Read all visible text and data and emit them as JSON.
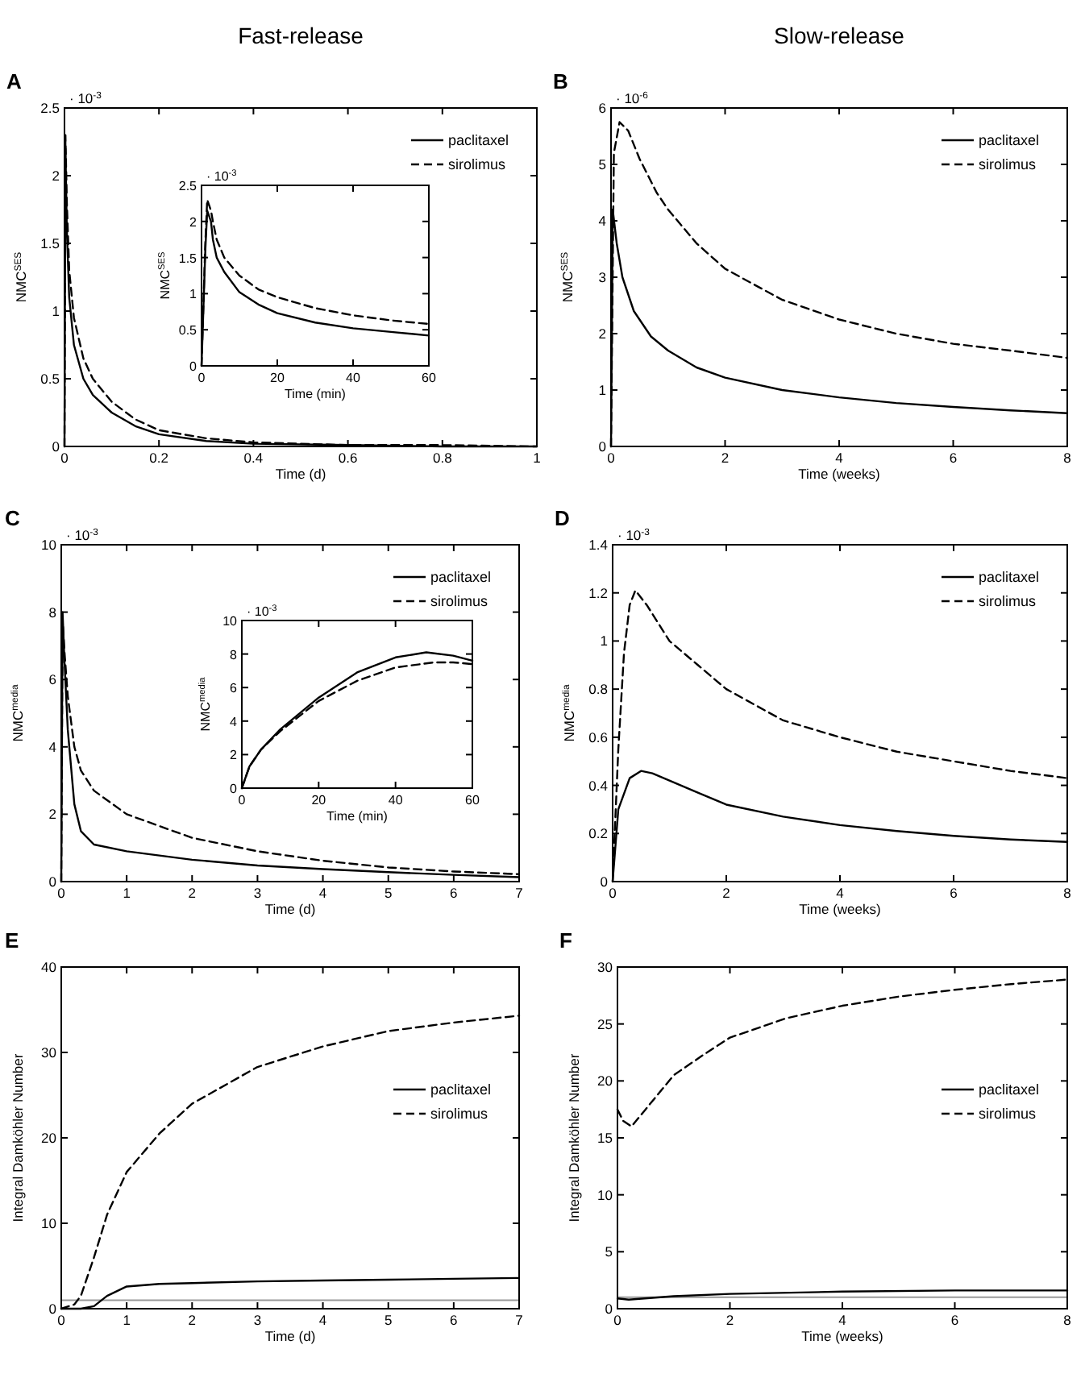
{
  "chart_data": [
    {
      "type": "line",
      "title": "Fast-release",
      "xlabel": "Time (d)",
      "ylabel": "NMC$^{SES}$",
      "annotations": [
        "A",
        "· 10$^{-3}$"
      ],
      "xlim": [
        0,
        1
      ],
      "xticks": [
        0,
        0.2,
        0.4,
        0.6,
        0.8,
        1
      ],
      "ylim": [
        0,
        2.5
      ],
      "yticks": [
        0,
        0.5,
        1,
        1.5,
        2,
        2.5
      ],
      "legend": "top right",
      "grid": false,
      "series": [
        {
          "name": "paclitaxel",
          "color": "#000000",
          "line_style": "solid",
          "x": [
            0,
            0.002,
            0.005,
            0.01,
            0.02,
            0.04,
            0.06,
            0.1,
            0.15,
            0.2,
            0.3,
            0.4,
            0.6,
            0.8,
            1
          ],
          "values": [
            0,
            2.2,
            1.6,
            1.1,
            0.75,
            0.5,
            0.38,
            0.25,
            0.15,
            0.09,
            0.04,
            0.02,
            0.01,
            0,
            0
          ]
        },
        {
          "name": "sirolimus",
          "color": "#000000",
          "line_style": "dashed",
          "x": [
            0,
            0.002,
            0.005,
            0.01,
            0.02,
            0.04,
            0.06,
            0.1,
            0.15,
            0.2,
            0.3,
            0.4,
            0.6,
            0.8,
            1
          ],
          "values": [
            0,
            2.3,
            1.8,
            1.3,
            0.95,
            0.65,
            0.5,
            0.33,
            0.2,
            0.12,
            0.06,
            0.03,
            0.01,
            0.01,
            0
          ]
        }
      ]
    },
    {
      "type": "line",
      "xlabel": "Time (min)",
      "ylabel": "NMC$^{SES}$",
      "annotations": [
        "· 10$^{-3}$"
      ],
      "xlim": [
        0,
        60
      ],
      "xticks": [
        0,
        20,
        40,
        60
      ],
      "ylim": [
        0,
        2.5
      ],
      "yticks": [
        0,
        0.5,
        1,
        1.5,
        2,
        2.5
      ],
      "legend": false,
      "grid": false,
      "series": [
        {
          "color": "#000000",
          "line_style": "solid",
          "x": [
            0,
            1,
            1.5,
            2.5,
            3,
            4,
            6,
            10,
            15,
            20,
            30,
            40,
            50,
            60
          ],
          "values": [
            0,
            1.6,
            2.15,
            2.0,
            1.75,
            1.5,
            1.3,
            1.02,
            0.85,
            0.73,
            0.6,
            0.52,
            0.47,
            0.42
          ]
        },
        {
          "color": "#000000",
          "line_style": "dashed",
          "x": [
            0,
            1,
            1.5,
            2.5,
            3,
            4,
            6,
            10,
            15,
            20,
            30,
            40,
            50,
            60
          ],
          "values": [
            0,
            1.7,
            2.3,
            2.15,
            2.0,
            1.75,
            1.5,
            1.25,
            1.06,
            0.95,
            0.8,
            0.7,
            0.63,
            0.58
          ]
        }
      ]
    },
    {
      "type": "line",
      "title": "Slow-release",
      "xlabel": "Time (weeks)",
      "ylabel": "NMC$^{SES}$",
      "annotations": [
        "B",
        "· 10$^{-6}$"
      ],
      "xlim": [
        0,
        8
      ],
      "xticks": [
        0,
        2,
        4,
        6,
        8
      ],
      "ylim": [
        0,
        6
      ],
      "yticks": [
        0,
        1,
        2,
        3,
        4,
        5,
        6
      ],
      "legend": "top right",
      "grid": false,
      "series": [
        {
          "name": "paclitaxel",
          "color": "#000000",
          "line_style": "solid",
          "x": [
            0,
            0.03,
            0.1,
            0.2,
            0.4,
            0.7,
            1,
            1.5,
            2,
            3,
            4,
            5,
            6,
            7,
            8
          ],
          "values": [
            0,
            4.2,
            3.6,
            3.0,
            2.4,
            1.95,
            1.7,
            1.4,
            1.22,
            1.0,
            0.87,
            0.77,
            0.7,
            0.64,
            0.59
          ]
        },
        {
          "name": "sirolimus",
          "color": "#000000",
          "line_style": "dashed",
          "x": [
            0,
            0.05,
            0.15,
            0.3,
            0.5,
            0.8,
            1,
            1.5,
            2,
            3,
            4,
            5,
            6,
            7,
            8
          ],
          "values": [
            0,
            5.2,
            5.75,
            5.6,
            5.1,
            4.5,
            4.2,
            3.6,
            3.15,
            2.6,
            2.25,
            2.0,
            1.82,
            1.7,
            1.57
          ]
        }
      ]
    },
    {
      "type": "line",
      "xlabel": "Time (d)",
      "ylabel": "NMC$^{media}$",
      "annotations": [
        "C",
        "· 10$^{-3}$"
      ],
      "xlim": [
        0,
        7
      ],
      "xticks": [
        0,
        1,
        2,
        3,
        4,
        5,
        6,
        7
      ],
      "ylim": [
        0,
        10
      ],
      "yticks": [
        0,
        2,
        4,
        6,
        8,
        10
      ],
      "legend": "top right",
      "grid": false,
      "series": [
        {
          "name": "paclitaxel",
          "color": "#000000",
          "line_style": "solid",
          "x": [
            0,
            0.02,
            0.05,
            0.1,
            0.2,
            0.3,
            0.5,
            1,
            2,
            3,
            4,
            5,
            6,
            7
          ],
          "values": [
            0,
            8,
            6.5,
            4.5,
            2.3,
            1.5,
            1.1,
            0.9,
            0.65,
            0.48,
            0.37,
            0.28,
            0.2,
            0.13
          ]
        },
        {
          "name": "sirolimus",
          "color": "#000000",
          "line_style": "dashed",
          "x": [
            0,
            0.02,
            0.05,
            0.1,
            0.2,
            0.3,
            0.5,
            1,
            2,
            3,
            4,
            5,
            6,
            7
          ],
          "values": [
            0,
            7.8,
            6.8,
            5.5,
            4.0,
            3.3,
            2.7,
            2.0,
            1.3,
            0.9,
            0.62,
            0.42,
            0.3,
            0.22
          ]
        }
      ]
    },
    {
      "type": "line",
      "xlabel": "Time (min)",
      "ylabel": "NMC$^{media}$",
      "annotations": [
        "· 10$^{-3}$"
      ],
      "xlim": [
        0,
        60
      ],
      "xticks": [
        0,
        20,
        40,
        60
      ],
      "ylim": [
        0,
        10
      ],
      "yticks": [
        0,
        2,
        4,
        6,
        8,
        10
      ],
      "legend": false,
      "grid": false,
      "series": [
        {
          "color": "#000000",
          "line_style": "solid",
          "x": [
            0,
            2,
            5,
            10,
            20,
            30,
            40,
            48,
            55,
            60
          ],
          "values": [
            0,
            1.3,
            2.3,
            3.5,
            5.4,
            6.9,
            7.8,
            8.1,
            7.9,
            7.6
          ]
        },
        {
          "color": "#000000",
          "line_style": "dashed",
          "x": [
            0,
            2,
            5,
            10,
            20,
            30,
            40,
            50,
            55,
            60
          ],
          "values": [
            0,
            1.3,
            2.3,
            3.4,
            5.2,
            6.4,
            7.2,
            7.5,
            7.5,
            7.4
          ]
        }
      ]
    },
    {
      "type": "line",
      "xlabel": "Time (weeks)",
      "ylabel": "NMC$^{media}$",
      "annotations": [
        "D",
        "· 10$^{-3}$"
      ],
      "xlim": [
        0,
        8
      ],
      "xticks": [
        0,
        2,
        4,
        6,
        8
      ],
      "ylim": [
        0,
        1.4
      ],
      "yticks": [
        0,
        0.2,
        0.4,
        0.6,
        0.8,
        1,
        1.2,
        1.4
      ],
      "legend": "top right",
      "grid": false,
      "series": [
        {
          "name": "paclitaxel",
          "color": "#000000",
          "line_style": "solid",
          "x": [
            0,
            0.1,
            0.3,
            0.5,
            0.7,
            1,
            1.5,
            2,
            3,
            4,
            5,
            6,
            7,
            8
          ],
          "values": [
            0,
            0.3,
            0.43,
            0.46,
            0.45,
            0.42,
            0.37,
            0.32,
            0.27,
            0.235,
            0.21,
            0.19,
            0.175,
            0.165
          ]
        },
        {
          "name": "sirolimus",
          "color": "#000000",
          "line_style": "dashed",
          "x": [
            0,
            0.1,
            0.2,
            0.3,
            0.4,
            0.6,
            1,
            1.5,
            2,
            3,
            4,
            5,
            6,
            7,
            8
          ],
          "values": [
            0,
            0.55,
            0.95,
            1.15,
            1.21,
            1.15,
            1.0,
            0.9,
            0.8,
            0.67,
            0.6,
            0.54,
            0.5,
            0.46,
            0.43
          ]
        }
      ]
    },
    {
      "type": "line",
      "xlabel": "Time (d)",
      "ylabel": "Integral Damköhler Number",
      "annotations": [
        "E"
      ],
      "xlim": [
        0,
        7
      ],
      "xticks": [
        0,
        1,
        2,
        3,
        4,
        5,
        6,
        7
      ],
      "ylim": [
        0,
        40
      ],
      "yticks": [
        0,
        10,
        20,
        30,
        40
      ],
      "legend": "right",
      "grid": false,
      "ref_lines": [
        {
          "axis": "y",
          "value": 1,
          "color": "#999999"
        }
      ],
      "series": [
        {
          "name": "paclitaxel",
          "color": "#000000",
          "line_style": "solid",
          "x": [
            0,
            0.3,
            0.5,
            0.7,
            1,
            1.5,
            2,
            3,
            4,
            5,
            6,
            7
          ],
          "values": [
            0,
            0,
            0.3,
            1.5,
            2.6,
            2.9,
            3.0,
            3.2,
            3.3,
            3.4,
            3.5,
            3.6
          ]
        },
        {
          "name": "sirolimus",
          "color": "#000000",
          "line_style": "dashed",
          "x": [
            0,
            0.2,
            0.3,
            0.5,
            0.7,
            1,
            1.5,
            2,
            3,
            4,
            5,
            6,
            7
          ],
          "values": [
            0,
            0.5,
            1.5,
            6,
            11,
            16,
            20.5,
            24,
            28.3,
            30.7,
            32.5,
            33.5,
            34.3
          ]
        }
      ]
    },
    {
      "type": "line",
      "xlabel": "Time (weeks)",
      "ylabel": "Integral Damköhler Number",
      "annotations": [
        "F"
      ],
      "xlim": [
        0,
        8
      ],
      "xticks": [
        0,
        2,
        4,
        6,
        8
      ],
      "ylim": [
        0,
        30
      ],
      "yticks": [
        0,
        5,
        10,
        15,
        20,
        25,
        30
      ],
      "legend": "right",
      "grid": false,
      "ref_lines": [
        {
          "axis": "y",
          "value": 1,
          "color": "#999999"
        }
      ],
      "series": [
        {
          "name": "paclitaxel",
          "color": "#000000",
          "line_style": "solid",
          "x": [
            0,
            0.2,
            1,
            2,
            4,
            6,
            8
          ],
          "values": [
            0.9,
            0.8,
            1.1,
            1.3,
            1.5,
            1.6,
            1.6
          ]
        },
        {
          "name": "sirolimus",
          "color": "#000000",
          "line_style": "dashed",
          "x": [
            0,
            0.1,
            0.25,
            0.5,
            1,
            1.5,
            2,
            3,
            4,
            5,
            6,
            7,
            8
          ],
          "values": [
            17.5,
            16.5,
            16.0,
            17.5,
            20.5,
            22.2,
            23.8,
            25.5,
            26.6,
            27.4,
            28.0,
            28.5,
            28.9
          ]
        }
      ]
    }
  ]
}
